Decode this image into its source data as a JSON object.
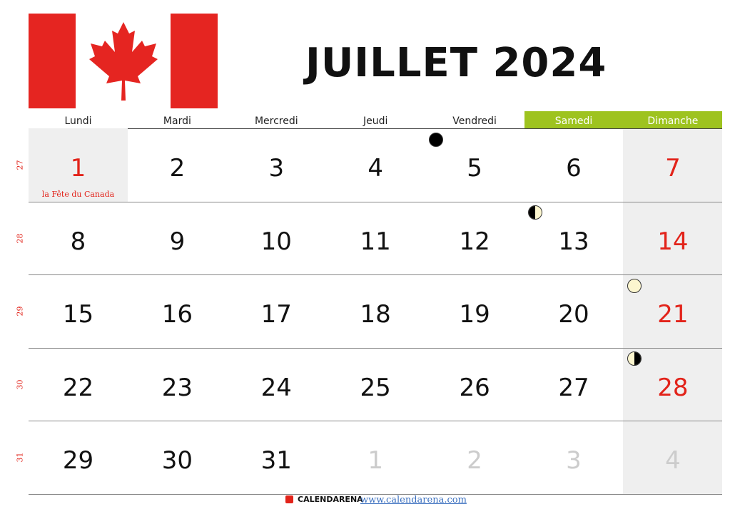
{
  "title": "JUILLET 2024",
  "colors": {
    "flag_red": "#e52521",
    "weekend_header": "#9ec31f",
    "holiday_red": "#e2231a"
  },
  "weekdays": [
    "Lundi",
    "Mardi",
    "Mercredi",
    "Jeudi",
    "Vendredi",
    "Samedi",
    "Dimanche"
  ],
  "week_numbers": [
    "27",
    "28",
    "29",
    "30",
    "31"
  ],
  "weeks": [
    [
      "1",
      "2",
      "3",
      "4",
      "5",
      "6",
      "7"
    ],
    [
      "8",
      "9",
      "10",
      "11",
      "12",
      "13",
      "14"
    ],
    [
      "15",
      "16",
      "17",
      "18",
      "19",
      "20",
      "21"
    ],
    [
      "22",
      "23",
      "24",
      "25",
      "26",
      "27",
      "28"
    ],
    [
      "29",
      "30",
      "31",
      "1",
      "2",
      "3",
      "4"
    ]
  ],
  "holiday": "la Fête du Canada",
  "moon_phases": [
    {
      "day": "5",
      "phase": "new-moon"
    },
    {
      "day": "13",
      "phase": "first-quarter"
    },
    {
      "day": "21",
      "phase": "full-moon"
    },
    {
      "day": "28",
      "phase": "last-quarter"
    }
  ],
  "footer": {
    "brand": "CALENDARENA",
    "url": "www.calendarena.com"
  }
}
